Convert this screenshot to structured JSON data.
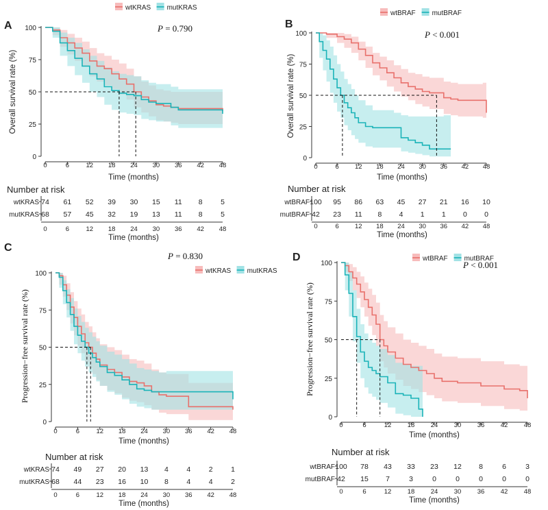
{
  "figure": {
    "colors": {
      "wt": "#e8706b",
      "mut": "#1ab3b8",
      "wt_band": "#f7bcbc",
      "mut_band": "#a2e2e5"
    },
    "risk_header": "Number at risk"
  },
  "chart_data": [
    {
      "panel": "A",
      "type": "line",
      "legend": [
        "wtKRAS",
        "mutKRAS"
      ],
      "pvalue": "P = 0.790",
      "ylabel": "Overall survival rate (%)",
      "xlabel": "Time (months)",
      "xlim": [
        0,
        48
      ],
      "ylim": [
        0,
        100
      ],
      "xticks": [
        0,
        6,
        12,
        18,
        24,
        30,
        36,
        42,
        48
      ],
      "yticks": [
        0,
        25,
        50,
        75,
        100
      ],
      "median": {
        "y": 50,
        "x": [
          20,
          24.5
        ]
      },
      "series": [
        {
          "name": "wtKRAS",
          "x": [
            0,
            2,
            4,
            6,
            8,
            10,
            12,
            14,
            16,
            18,
            20,
            22,
            24,
            26,
            28,
            30,
            32,
            34,
            36,
            40,
            44,
            48
          ],
          "y": [
            100,
            98,
            92,
            88,
            84,
            80,
            74,
            70,
            68,
            64,
            60,
            56,
            50,
            46,
            43,
            40,
            39,
            38,
            37,
            37,
            37,
            35
          ],
          "upper": [
            100,
            100,
            98,
            95,
            92,
            89,
            84,
            80,
            78,
            75,
            72,
            68,
            62,
            58,
            55,
            52,
            51,
            50,
            50,
            50,
            50,
            48
          ],
          "lower": [
            100,
            94,
            85,
            79,
            74,
            70,
            62,
            58,
            55,
            52,
            48,
            44,
            38,
            34,
            31,
            28,
            27,
            26,
            25,
            25,
            25,
            22
          ]
        },
        {
          "name": "mutKRAS",
          "x": [
            0,
            2,
            4,
            6,
            8,
            10,
            12,
            14,
            16,
            18,
            20,
            22,
            24,
            26,
            28,
            30,
            32,
            34,
            36,
            40,
            44,
            48
          ],
          "y": [
            100,
            97,
            88,
            82,
            76,
            70,
            64,
            60,
            54,
            51,
            49,
            48,
            47,
            44,
            42,
            41,
            41,
            38,
            36,
            36,
            36,
            33
          ],
          "upper": [
            100,
            100,
            96,
            92,
            88,
            83,
            78,
            74,
            69,
            66,
            64,
            63,
            62,
            59,
            57,
            56,
            56,
            54,
            52,
            52,
            52,
            50
          ],
          "lower": [
            100,
            92,
            78,
            70,
            63,
            57,
            50,
            46,
            40,
            36,
            34,
            33,
            32,
            29,
            28,
            27,
            27,
            24,
            22,
            22,
            22,
            18
          ]
        }
      ],
      "risk_table": {
        "rows": [
          {
            "label": "wtKRAS",
            "values": [
              74,
              61,
              52,
              39,
              30,
              15,
              11,
              8,
              5
            ]
          },
          {
            "label": "mutKRAS",
            "values": [
              68,
              57,
              45,
              32,
              19,
              13,
              11,
              8,
              5
            ]
          }
        ]
      }
    },
    {
      "panel": "B",
      "type": "line",
      "legend": [
        "wtBRAF",
        "mutBRAF"
      ],
      "pvalue": "P < 0.001",
      "ylabel": "Overall survival rate (%)",
      "xlabel": "Time (months)",
      "xlim": [
        0,
        48
      ],
      "ylim": [
        0,
        100
      ],
      "xticks": [
        0,
        6,
        12,
        18,
        24,
        30,
        36,
        42,
        48
      ],
      "yticks": [
        0,
        25,
        50,
        75,
        100
      ],
      "median": {
        "y": 50,
        "x": [
          7.5,
          34
        ]
      },
      "series": [
        {
          "name": "wtBRAF",
          "x": [
            0,
            3,
            6,
            8,
            10,
            12,
            14,
            16,
            18,
            20,
            22,
            24,
            26,
            28,
            30,
            32,
            34,
            36,
            38,
            40,
            44,
            47,
            48
          ],
          "y": [
            100,
            99,
            97,
            95,
            92,
            87,
            82,
            76,
            72,
            68,
            64,
            60,
            57,
            55,
            53,
            52,
            52,
            48,
            47,
            46,
            46,
            46,
            36
          ],
          "upper": [
            100,
            100,
            100,
            99,
            97,
            93,
            89,
            84,
            81,
            78,
            74,
            71,
            68,
            67,
            65,
            64,
            64,
            61,
            60,
            59,
            59,
            60,
            60
          ],
          "lower": [
            100,
            96,
            92,
            88,
            84,
            78,
            72,
            66,
            62,
            57,
            53,
            49,
            46,
            43,
            41,
            39,
            39,
            35,
            34,
            33,
            33,
            32,
            22
          ]
        },
        {
          "name": "mutBRAF",
          "x": [
            0,
            1,
            2,
            3,
            4,
            5,
            6,
            7,
            8,
            9,
            10,
            11,
            12,
            14,
            16,
            18,
            22,
            24,
            26,
            28,
            30,
            32,
            34,
            36,
            38
          ],
          "y": [
            100,
            93,
            86,
            79,
            71,
            63,
            56,
            50,
            44,
            40,
            36,
            32,
            28,
            25,
            24,
            24,
            24,
            16,
            14,
            12,
            10,
            7,
            7,
            7,
            7
          ],
          "upper": [
            100,
            100,
            98,
            94,
            89,
            82,
            75,
            69,
            63,
            59,
            55,
            50,
            46,
            42,
            38,
            38,
            36,
            34,
            33,
            33,
            33,
            33,
            33,
            34,
            35
          ],
          "lower": [
            100,
            80,
            70,
            61,
            52,
            44,
            37,
            32,
            26,
            22,
            18,
            15,
            12,
            9,
            8,
            8,
            8,
            5,
            4,
            3,
            2,
            1,
            1,
            1,
            0
          ]
        }
      ],
      "risk_table": {
        "rows": [
          {
            "label": "wtBRAF",
            "values": [
              100,
              95,
              86,
              63,
              45,
              27,
              21,
              16,
              10
            ]
          },
          {
            "label": "mutBRAF",
            "values": [
              42,
              23,
              11,
              8,
              4,
              1,
              1,
              0,
              0
            ]
          }
        ]
      }
    },
    {
      "panel": "C",
      "type": "line",
      "legend": [
        "wtKRAS",
        "mutKRAS"
      ],
      "pvalue": "P = 0.830",
      "ylabel": "Progression−free survival rate (%)",
      "xlabel": "Time (months)",
      "xlim": [
        0,
        48
      ],
      "ylim": [
        0,
        100
      ],
      "xticks": [
        0,
        6,
        12,
        18,
        24,
        30,
        36,
        42,
        48
      ],
      "yticks": [
        0,
        25,
        50,
        75,
        100
      ],
      "median": {
        "y": 50,
        "x": [
          8.5,
          9.5
        ]
      },
      "series": [
        {
          "name": "wtKRAS",
          "x": [
            0,
            1,
            2,
            3,
            4,
            5,
            6,
            7,
            8,
            9,
            10,
            11,
            12,
            14,
            16,
            18,
            20,
            22,
            24,
            26,
            28,
            30,
            36,
            42,
            48
          ],
          "y": [
            100,
            98,
            92,
            85,
            77,
            70,
            64,
            59,
            53,
            50,
            46,
            42,
            38,
            35,
            33,
            30,
            27,
            26,
            24,
            20,
            18,
            17,
            10,
            10,
            8
          ],
          "upper": [
            100,
            100,
            98,
            93,
            87,
            81,
            76,
            72,
            67,
            64,
            60,
            56,
            52,
            50,
            48,
            45,
            42,
            41,
            39,
            35,
            33,
            32,
            26,
            26,
            24
          ],
          "lower": [
            100,
            92,
            84,
            75,
            66,
            58,
            51,
            46,
            40,
            36,
            32,
            28,
            24,
            21,
            19,
            16,
            14,
            13,
            11,
            8,
            6,
            5,
            1,
            1,
            0
          ]
        },
        {
          "name": "mutKRAS",
          "x": [
            0,
            1,
            2,
            3,
            4,
            5,
            6,
            7,
            8,
            9,
            10,
            11,
            12,
            14,
            16,
            18,
            20,
            22,
            24,
            26,
            28,
            30,
            36,
            42,
            48
          ],
          "y": [
            100,
            97,
            88,
            80,
            72,
            64,
            58,
            54,
            50,
            46,
            43,
            40,
            37,
            33,
            31,
            28,
            25,
            22,
            21,
            20,
            20,
            20,
            20,
            20,
            15
          ],
          "upper": [
            100,
            100,
            95,
            89,
            83,
            76,
            71,
            67,
            63,
            60,
            57,
            54,
            51,
            47,
            45,
            42,
            39,
            36,
            35,
            34,
            33,
            34,
            34,
            34,
            31
          ],
          "lower": [
            100,
            90,
            79,
            70,
            61,
            52,
            46,
            41,
            37,
            33,
            30,
            27,
            24,
            20,
            18,
            15,
            12,
            10,
            9,
            8,
            8,
            8,
            8,
            8,
            3
          ]
        }
      ],
      "risk_table": {
        "rows": [
          {
            "label": "wtKRAS",
            "values": [
              74,
              49,
              27,
              20,
              13,
              4,
              4,
              2,
              1
            ]
          },
          {
            "label": "mutKRAS",
            "values": [
              68,
              44,
              23,
              16,
              10,
              8,
              4,
              4,
              2
            ]
          }
        ]
      }
    },
    {
      "panel": "D",
      "type": "line",
      "legend": [
        "wtBRAF",
        "mutBRAF"
      ],
      "pvalue": "P < 0.001",
      "ylabel": "Progression−free survival rate (%)",
      "xlabel": "Time (months)",
      "xlim": [
        0,
        48
      ],
      "ylim": [
        0,
        100
      ],
      "xticks": [
        0,
        6,
        12,
        18,
        24,
        30,
        36,
        42,
        48
      ],
      "yticks": [
        0,
        25,
        50,
        75,
        100
      ],
      "median": {
        "y": 50,
        "x": [
          4,
          10
        ]
      },
      "series": [
        {
          "name": "wtBRAF",
          "x": [
            0,
            1,
            2,
            3,
            4,
            5,
            6,
            7,
            8,
            9,
            10,
            11,
            12,
            14,
            16,
            18,
            20,
            22,
            24,
            26,
            28,
            30,
            36,
            42,
            46,
            47,
            48
          ],
          "y": [
            100,
            98,
            94,
            90,
            86,
            81,
            76,
            71,
            66,
            60,
            50,
            46,
            42,
            38,
            34,
            32,
            30,
            28,
            25,
            23,
            23,
            22,
            20,
            18,
            17,
            17,
            12
          ],
          "upper": [
            100,
            100,
            99,
            97,
            94,
            91,
            87,
            83,
            79,
            74,
            66,
            62,
            58,
            54,
            50,
            48,
            46,
            44,
            41,
            39,
            39,
            38,
            36,
            34,
            33,
            33,
            29
          ],
          "lower": [
            100,
            94,
            88,
            82,
            77,
            71,
            65,
            59,
            53,
            46,
            36,
            32,
            28,
            24,
            20,
            18,
            16,
            14,
            12,
            10,
            10,
            9,
            7,
            5,
            4,
            4,
            1
          ]
        },
        {
          "name": "mutBRAF",
          "x": [
            0,
            1,
            2,
            3,
            4,
            5,
            6,
            7,
            8,
            9,
            10,
            12,
            14,
            16,
            18,
            20,
            21
          ],
          "y": [
            100,
            92,
            80,
            65,
            52,
            42,
            36,
            32,
            30,
            28,
            26,
            22,
            15,
            14,
            12,
            5,
            0
          ],
          "upper": [
            100,
            100,
            94,
            82,
            70,
            60,
            54,
            50,
            48,
            46,
            44,
            40,
            35,
            34,
            33,
            33,
            30
          ],
          "lower": [
            100,
            82,
            65,
            49,
            35,
            25,
            19,
            15,
            13,
            11,
            9,
            6,
            2,
            1,
            0,
            0,
            0
          ]
        }
      ],
      "risk_table": {
        "rows": [
          {
            "label": "wtBRAF",
            "values": [
              100,
              78,
              43,
              33,
              23,
              12,
              8,
              6,
              3
            ]
          },
          {
            "label": "mutBRAF",
            "values": [
              42,
              15,
              7,
              3,
              0,
              0,
              0,
              0,
              0
            ]
          }
        ]
      }
    }
  ]
}
